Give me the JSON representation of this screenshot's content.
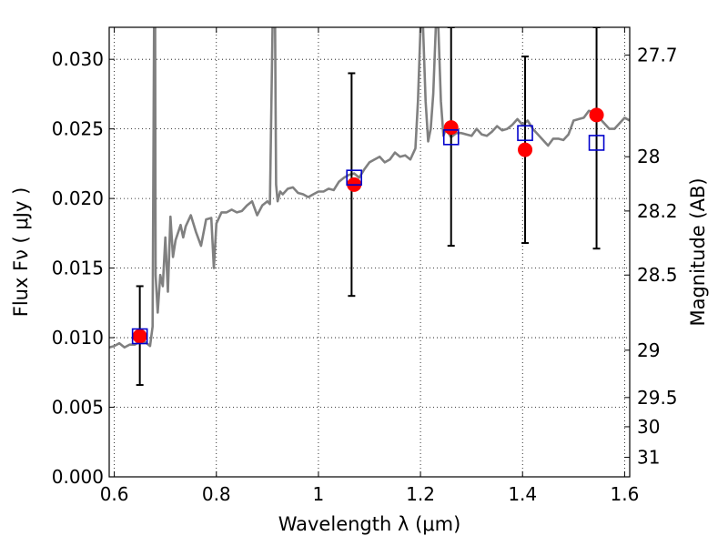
{
  "chart_data": {
    "type": "scatter",
    "xlabel": "Wavelength  λ (μm)",
    "ylabel": "Flux  Fν  ( μJy )",
    "y2label": "Magnitude (AB)",
    "xlim": [
      0.59,
      1.61
    ],
    "ylim": [
      0.0,
      0.0323
    ],
    "xticks": [
      0.6,
      0.8,
      1.0,
      1.2,
      1.4,
      1.6
    ],
    "xtick_labels": [
      "0.6",
      "0.8",
      "1",
      "1.2",
      "1.4",
      "1.6"
    ],
    "yticks": [
      0.0,
      0.005,
      0.01,
      0.015,
      0.02,
      0.025,
      0.03
    ],
    "ytick_labels": [
      "0.000",
      "0.005",
      "0.010",
      "0.015",
      "0.020",
      "0.025",
      "0.030"
    ],
    "y2ticks": [
      {
        "label": "27.7",
        "flux": 0.0303
      },
      {
        "label": "28",
        "flux": 0.023
      },
      {
        "label": "28.2",
        "flux": 0.0191
      },
      {
        "label": "28.5",
        "flux": 0.0145
      },
      {
        "label": "29",
        "flux": 0.0091
      },
      {
        "label": "29.5",
        "flux": 0.0057
      },
      {
        "label": "30",
        "flux": 0.0036
      },
      {
        "label": "31",
        "flux": 0.0014
      }
    ],
    "grid": true,
    "series": [
      {
        "kind": "line",
        "color": "#808080",
        "x": [
          0.59,
          0.6,
          0.61,
          0.62,
          0.63,
          0.64,
          0.65,
          0.66,
          0.67,
          0.675,
          0.678,
          0.68,
          0.681,
          0.685,
          0.69,
          0.695,
          0.7,
          0.705,
          0.71,
          0.715,
          0.72,
          0.73,
          0.735,
          0.74,
          0.75,
          0.76,
          0.77,
          0.78,
          0.79,
          0.795,
          0.8,
          0.81,
          0.82,
          0.83,
          0.84,
          0.85,
          0.86,
          0.87,
          0.88,
          0.89,
          0.9,
          0.905,
          0.91,
          0.912,
          0.915,
          0.917,
          0.92,
          0.925,
          0.93,
          0.94,
          0.95,
          0.96,
          0.97,
          0.98,
          0.99,
          1.0,
          1.01,
          1.02,
          1.03,
          1.04,
          1.05,
          1.06,
          1.07,
          1.08,
          1.09,
          1.1,
          1.11,
          1.12,
          1.13,
          1.14,
          1.15,
          1.16,
          1.17,
          1.18,
          1.19,
          1.195,
          1.2,
          1.205,
          1.21,
          1.215,
          1.22,
          1.225,
          1.23,
          1.235,
          1.24,
          1.245,
          1.25,
          1.26,
          1.27,
          1.28,
          1.29,
          1.3,
          1.31,
          1.32,
          1.33,
          1.34,
          1.35,
          1.36,
          1.37,
          1.38,
          1.39,
          1.4,
          1.41,
          1.42,
          1.43,
          1.44,
          1.45,
          1.46,
          1.47,
          1.48,
          1.49,
          1.5,
          1.51,
          1.52,
          1.53,
          1.54,
          1.55,
          1.56,
          1.57,
          1.58,
          1.59,
          1.6,
          1.61
        ],
        "y": [
          0.0093,
          0.0094,
          0.0096,
          0.0093,
          0.0095,
          0.0095,
          0.0097,
          0.0097,
          0.0094,
          0.0108,
          0.0323,
          0.0323,
          0.0145,
          0.0118,
          0.0145,
          0.0137,
          0.0172,
          0.0133,
          0.0187,
          0.0158,
          0.017,
          0.0181,
          0.0172,
          0.018,
          0.0188,
          0.0176,
          0.0166,
          0.0185,
          0.0186,
          0.015,
          0.0182,
          0.019,
          0.019,
          0.0192,
          0.019,
          0.0191,
          0.0195,
          0.0198,
          0.0188,
          0.0195,
          0.0198,
          0.0196,
          0.0323,
          0.0323,
          0.0323,
          0.021,
          0.0198,
          0.0205,
          0.0203,
          0.0207,
          0.0208,
          0.0204,
          0.0203,
          0.0201,
          0.0203,
          0.0205,
          0.0205,
          0.0207,
          0.0206,
          0.0212,
          0.0215,
          0.0217,
          0.0218,
          0.0215,
          0.0221,
          0.0226,
          0.0228,
          0.023,
          0.0226,
          0.0228,
          0.0233,
          0.023,
          0.0231,
          0.0228,
          0.0236,
          0.027,
          0.0323,
          0.0323,
          0.027,
          0.0241,
          0.025,
          0.0275,
          0.0323,
          0.0323,
          0.027,
          0.0245,
          0.025,
          0.0244,
          0.0247,
          0.0247,
          0.0246,
          0.0245,
          0.025,
          0.0246,
          0.0245,
          0.0248,
          0.0252,
          0.0249,
          0.025,
          0.0253,
          0.0257,
          0.0253,
          0.0256,
          0.025,
          0.0246,
          0.0242,
          0.0238,
          0.0243,
          0.0243,
          0.0242,
          0.0246,
          0.0256,
          0.0257,
          0.0258,
          0.0263,
          0.0262,
          0.0258,
          0.0254,
          0.025,
          0.025,
          0.0254,
          0.0258,
          0.0256
        ]
      },
      {
        "kind": "errorbar",
        "color": "#000000",
        "x": [
          0.65,
          1.065,
          1.26,
          1.405,
          1.545
        ],
        "y": [
          0.0102,
          0.021,
          0.0242,
          0.0235,
          0.024
        ],
        "ylow": [
          0.0066,
          0.013,
          0.0166,
          0.0168,
          0.0164
        ],
        "yhigh": [
          0.0137,
          0.029,
          0.0323,
          0.0302,
          0.0323
        ]
      },
      {
        "kind": "marker",
        "marker": "circle",
        "color": "#ff0000",
        "x": [
          0.65,
          1.07,
          1.26,
          1.405,
          1.545
        ],
        "y": [
          0.0101,
          0.021,
          0.0251,
          0.0235,
          0.026
        ]
      },
      {
        "kind": "marker",
        "marker": "square",
        "color": "#0000cc",
        "x": [
          0.65,
          1.07,
          1.26,
          1.405,
          1.545
        ],
        "y": [
          0.0101,
          0.0215,
          0.0244,
          0.0247,
          0.024
        ]
      }
    ],
    "colors": {
      "grid": "#000000",
      "axes": "#000000"
    }
  }
}
